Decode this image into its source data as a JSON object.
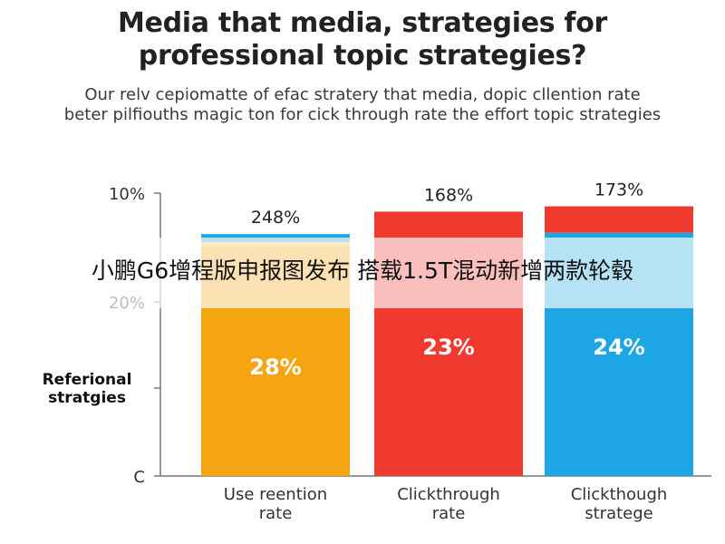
{
  "title_line1": "Media that media, strategies for",
  "title_line2": "professional topic strategies?",
  "subtitle_line1": "Our relv cepiomatte of efac stratery that media, dopic cllention rate",
  "subtitle_line2": "beter pilfiouths magic ton for cick through rate the effort topic strategies",
  "overlay_caption": "小鹏G6增程版申报图发布 搭载1.5T混动新增两款轮毂",
  "chart_data": {
    "type": "bar",
    "stacked": true,
    "title": "",
    "ylabel": "Referional stratgies",
    "y_tick_labels": [
      "10%",
      "20%",
      "C"
    ],
    "categories": [
      {
        "line1": "Use reention",
        "line2": "rate"
      },
      {
        "line1": "Clickthrough",
        "line2": "rate"
      },
      {
        "line1": "Clickthough",
        "line2": "stratege"
      }
    ],
    "top_labels": [
      "248%",
      "168%",
      "173%"
    ],
    "value_labels": [
      "28%",
      "23%",
      "24%"
    ],
    "bar_colors": [
      "#f5a511",
      "#f0392f",
      "#1ca6e3"
    ],
    "caps": [
      [
        {
          "color": "#f0c93a",
          "size": 1.5
        },
        {
          "color": "#1ca6e3",
          "size": 3
        }
      ],
      [],
      [
        {
          "color": "#1ca6e3",
          "size": 5
        },
        {
          "color": "#f0392f",
          "size": 10
        }
      ]
    ],
    "totals": [
      91.5,
      100,
      102
    ],
    "y_max": 107,
    "grid": false
  }
}
